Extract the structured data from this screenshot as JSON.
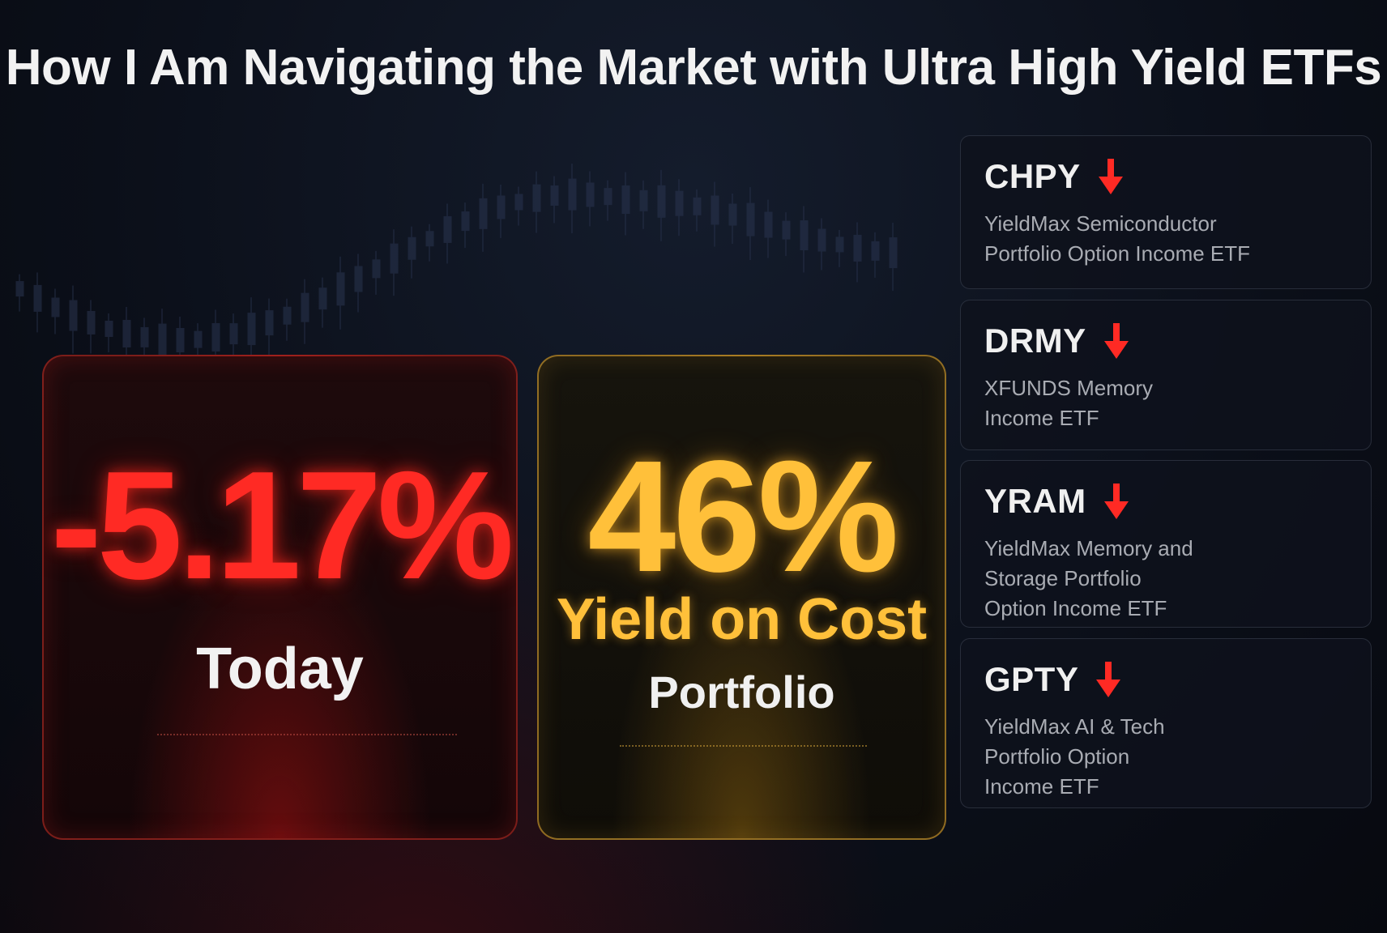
{
  "title": "How I Am Navigating the Market with Ultra High Yield ETFs",
  "cards": {
    "today": {
      "value": "-5.17%",
      "label": "Today"
    },
    "yield": {
      "value": "46%",
      "label": "Yield on Cost",
      "sublabel": "Portfolio"
    }
  },
  "etfs": [
    {
      "ticker": "CHPY",
      "direction": "down",
      "description": [
        "YieldMax Semiconductor",
        "Portfolio Option Income ETF"
      ]
    },
    {
      "ticker": "DRMY",
      "direction": "down",
      "description": [
        "XFUNDS Memory",
        "Income ETF"
      ]
    },
    {
      "ticker": "YRAM",
      "direction": "down",
      "description": [
        "YieldMax Memory and",
        "Storage Portfolio",
        "Option Income ETF"
      ]
    },
    {
      "ticker": "GPTY",
      "direction": "down",
      "description": [
        "YieldMax AI & Tech",
        "Portfolio Option",
        "Income ETF"
      ]
    }
  ],
  "colors": {
    "negative": "#ff2a24",
    "highlight": "#ffc03a",
    "background": "#0b0f19"
  }
}
